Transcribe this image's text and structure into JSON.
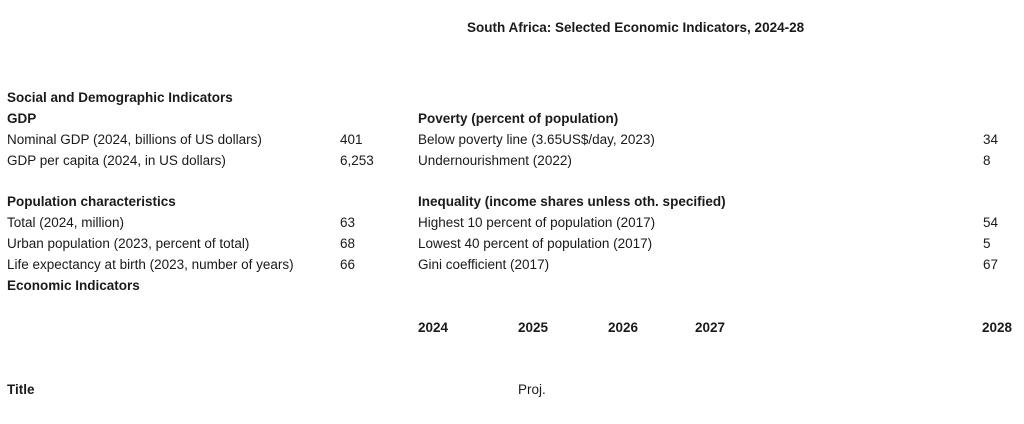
{
  "page": {
    "title": "South Africa: Selected Economic Indicators, 2024-28"
  },
  "left": {
    "section1_header": "Social and Demographic Indicators",
    "gdp": {
      "header": "GDP",
      "rows": [
        {
          "label": "Nominal GDP (2024, billions of US dollars)",
          "value": "401"
        },
        {
          "label": "GDP per capita (2024, in US dollars)",
          "value": "6,253"
        }
      ]
    },
    "population": {
      "header": "Population characteristics",
      "rows": [
        {
          "label": "Total (2024, million)",
          "value": "63"
        },
        {
          "label": "Urban population (2023, percent of total)",
          "value": "68"
        },
        {
          "label": "Life expectancy at birth (2023, number of years)",
          "value": "66"
        }
      ]
    },
    "section2_header": "Economic Indicators"
  },
  "right": {
    "poverty": {
      "header": "Poverty (percent of population)",
      "rows": [
        {
          "label": "Below poverty line (3.65US$/day, 2023)",
          "value": "34"
        },
        {
          "label": "Undernourishment (2022)",
          "value": "8"
        }
      ]
    },
    "inequality": {
      "header": "Inequality (income shares unless oth. specified)",
      "rows": [
        {
          "label": "Highest 10 percent of population (2017)",
          "value": "54"
        },
        {
          "label": "Lowest 40 percent of population (2017)",
          "value": "5"
        },
        {
          "label": "Gini coefficient (2017)",
          "value": "67"
        }
      ]
    }
  },
  "years": {
    "labels": [
      "2024",
      "2025",
      "2026",
      "2027",
      "2028"
    ]
  },
  "footer": {
    "row_title": "Title",
    "proj_label": "Proj."
  },
  "colors": {
    "text": "#1a1a1a",
    "background": "#ffffff"
  }
}
